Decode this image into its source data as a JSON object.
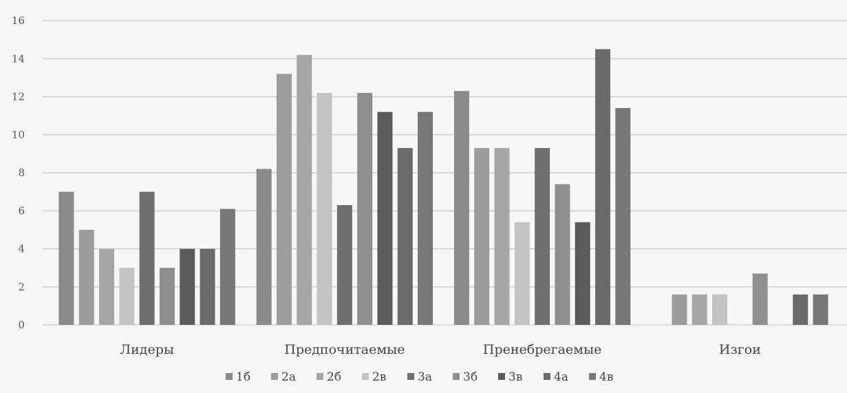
{
  "chart_data": {
    "type": "bar",
    "title": "",
    "xlabel": "",
    "ylabel": "",
    "ylim": [
      0,
      16
    ],
    "yticks": [
      0,
      2,
      4,
      6,
      8,
      10,
      12,
      14,
      16
    ],
    "grid": true,
    "legend_position": "bottom",
    "categories": [
      "Лидеры",
      "Предпочитаемые",
      "Пренебрегаемые",
      "Изгои"
    ],
    "series": [
      {
        "name": "1б",
        "color": "#8a8a8a",
        "values": [
          7,
          8.2,
          12.3,
          0
        ]
      },
      {
        "name": "2а",
        "color": "#9c9c9c",
        "values": [
          5,
          13.2,
          9.3,
          1.6
        ]
      },
      {
        "name": "2б",
        "color": "#a6a6a6",
        "values": [
          4,
          14.2,
          9.3,
          1.6
        ]
      },
      {
        "name": "2в",
        "color": "#c3c3c3",
        "values": [
          3,
          12.2,
          5.4,
          1.6
        ]
      },
      {
        "name": "3а",
        "color": "#6f6f6f",
        "values": [
          7,
          6.3,
          9.3,
          0
        ]
      },
      {
        "name": "3б",
        "color": "#8f8f8f",
        "values": [
          3,
          12.2,
          7.4,
          2.7
        ]
      },
      {
        "name": "3в",
        "color": "#5a5a5a",
        "values": [
          4,
          11.2,
          5.4,
          0
        ]
      },
      {
        "name": "4а",
        "color": "#6a6a6a",
        "values": [
          4,
          9.3,
          14.5,
          1.6
        ]
      },
      {
        "name": "4в",
        "color": "#777777",
        "values": [
          6.1,
          11.2,
          11.4,
          1.6
        ]
      }
    ]
  }
}
